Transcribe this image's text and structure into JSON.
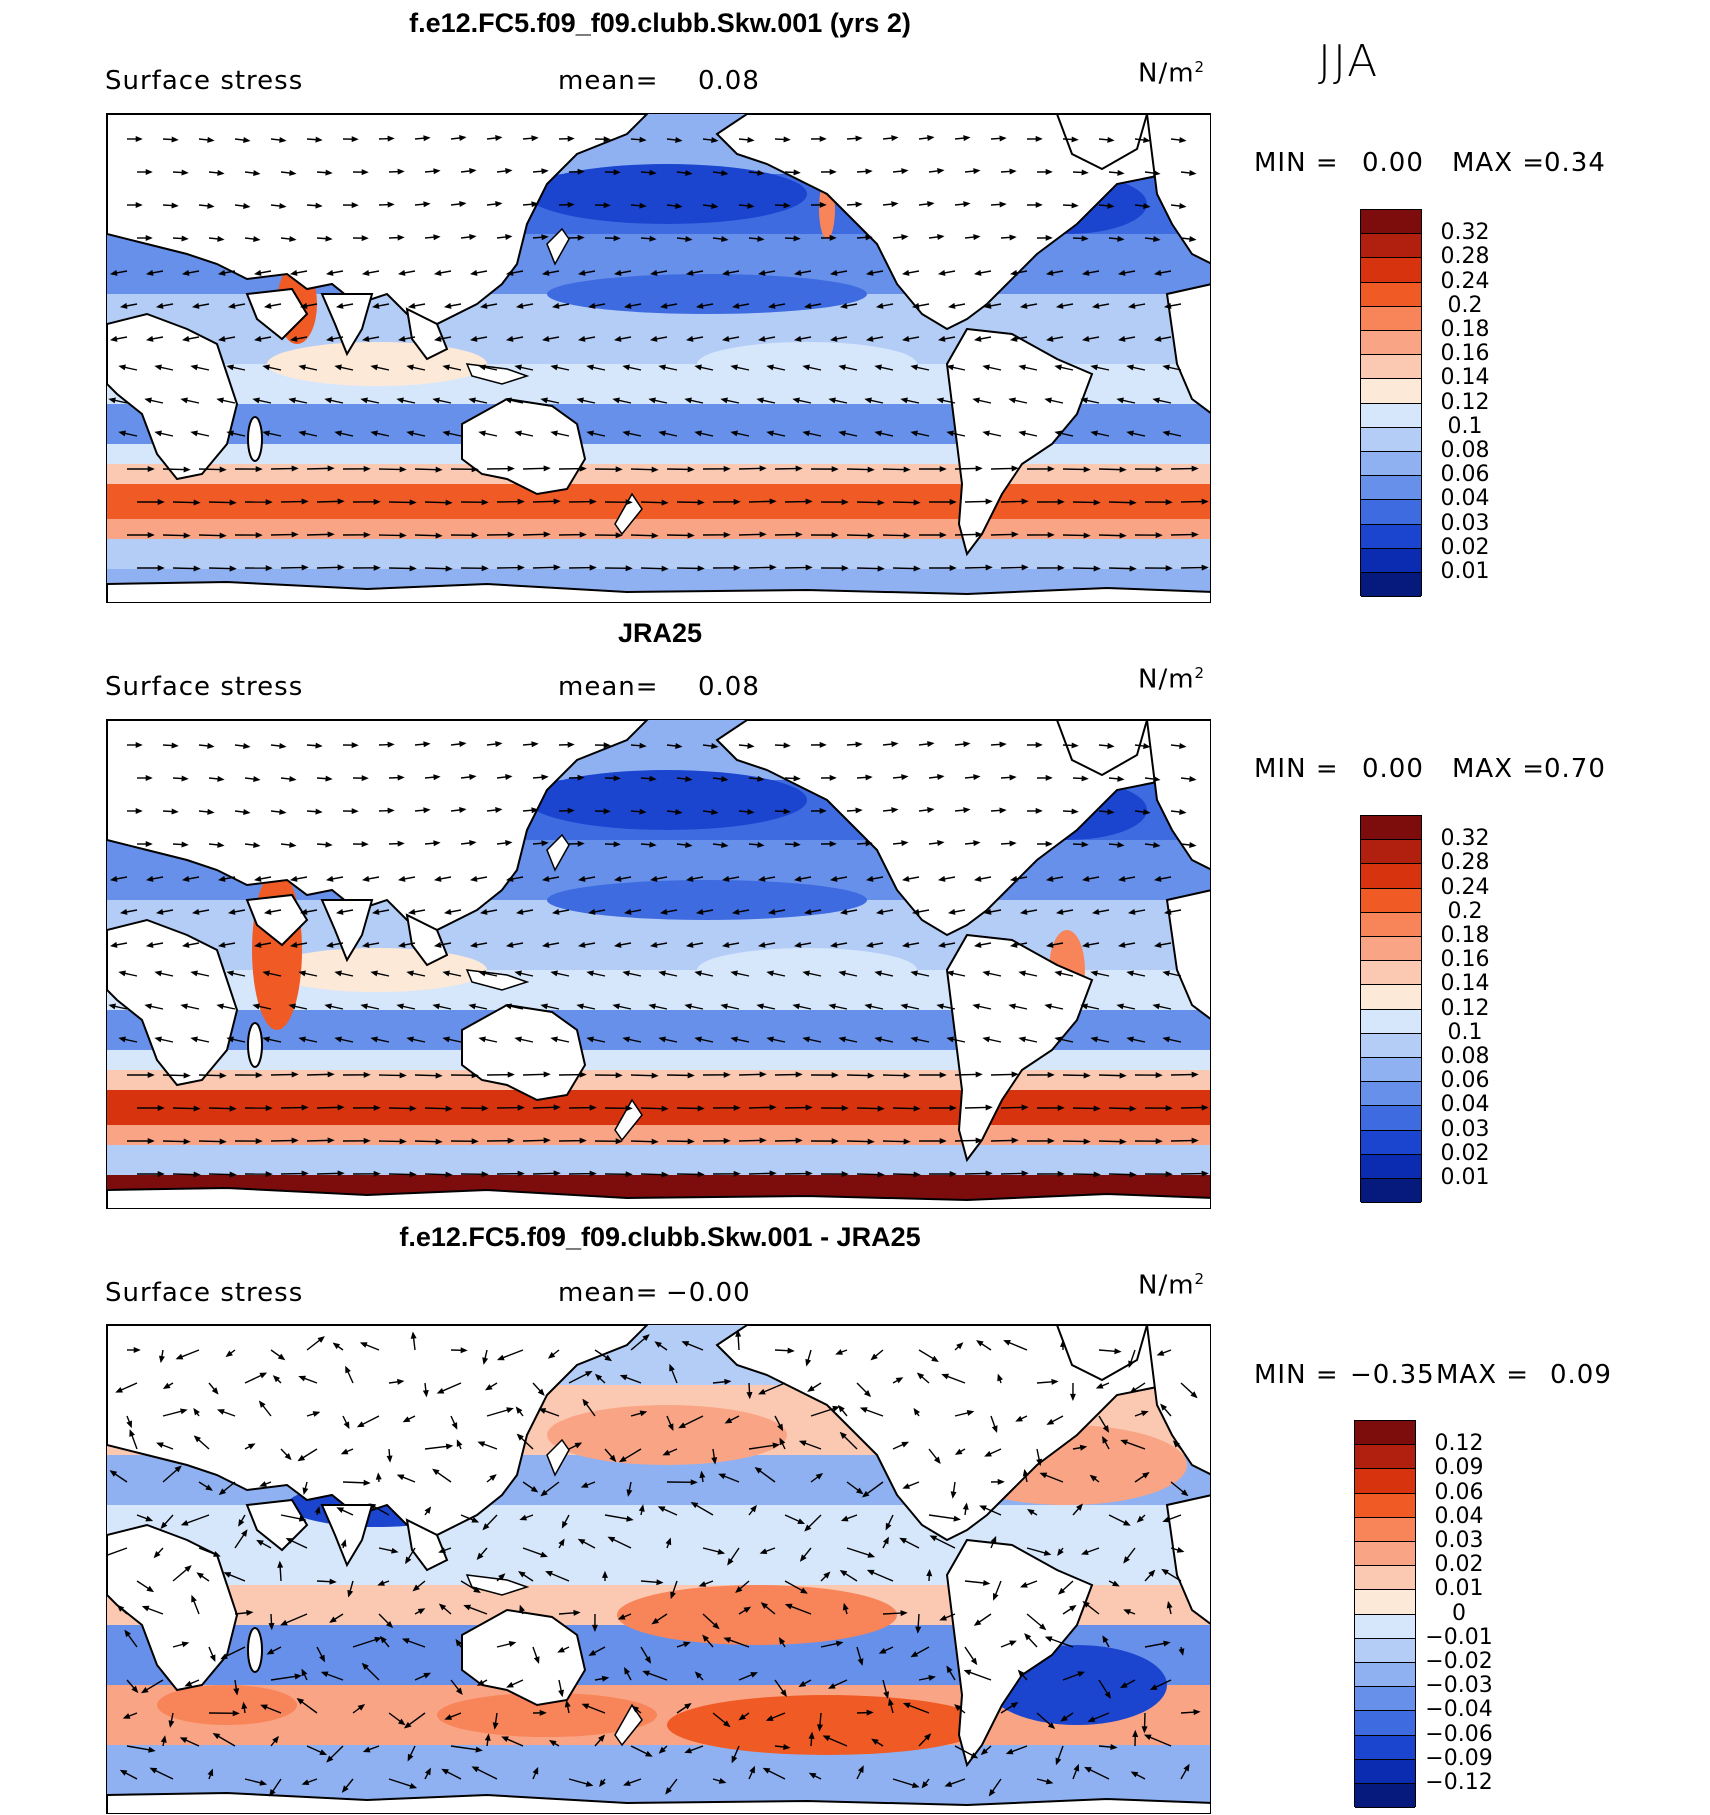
{
  "season": "JJA",
  "panels": [
    {
      "title": "f.e12.FC5.f09_f09.clubb.Skw.001 (yrs 2)",
      "variable": "Surface stress",
      "mean_label": "mean=",
      "mean_value": "0.08",
      "units": "N/m",
      "units_sup": "2",
      "min_label": "MIN =",
      "min_value": "0.00",
      "max_label": "MAX =",
      "max_value": "0.34",
      "colorbar_levels": [
        "0.32",
        "0.28",
        "0.24",
        "0.2",
        "0.18",
        "0.16",
        "0.14",
        "0.12",
        "0.1",
        "0.08",
        "0.06",
        "0.04",
        "0.03",
        "0.02",
        "0.01"
      ],
      "colorbar_colors": [
        "#7d0c0c",
        "#b1200e",
        "#d7330f",
        "#f05a24",
        "#f8845a",
        "#f9a585",
        "#fbc9b1",
        "#fde9d8",
        "#d6e7fb",
        "#b4cdf7",
        "#8fb1f1",
        "#6790ea",
        "#3e6be0",
        "#1b45cf",
        "#0b2bb0",
        "#061a7e"
      ]
    },
    {
      "title": "JRA25",
      "variable": "Surface stress",
      "mean_label": "mean=",
      "mean_value": "0.08",
      "units": "N/m",
      "units_sup": "2",
      "min_label": "MIN =",
      "min_value": "0.00",
      "max_label": "MAX =",
      "max_value": "0.70",
      "colorbar_levels": [
        "0.32",
        "0.28",
        "0.24",
        "0.2",
        "0.18",
        "0.16",
        "0.14",
        "0.12",
        "0.1",
        "0.08",
        "0.06",
        "0.04",
        "0.03",
        "0.02",
        "0.01"
      ],
      "colorbar_colors": [
        "#7d0c0c",
        "#b1200e",
        "#d7330f",
        "#f05a24",
        "#f8845a",
        "#f9a585",
        "#fbc9b1",
        "#fde9d8",
        "#d6e7fb",
        "#b4cdf7",
        "#8fb1f1",
        "#6790ea",
        "#3e6be0",
        "#1b45cf",
        "#0b2bb0",
        "#061a7e"
      ]
    },
    {
      "title": "f.e12.FC5.f09_f09.clubb.Skw.001 - JRA25",
      "variable": "Surface stress",
      "mean_label": "mean=",
      "mean_value": "−0.00",
      "units": "N/m",
      "units_sup": "2",
      "min_label": "MIN =",
      "min_value": "−0.35",
      "max_label": "MAX =",
      "max_value": "0.09",
      "colorbar_levels": [
        "0.12",
        "0.09",
        "0.06",
        "0.04",
        "0.03",
        "0.02",
        "0.01",
        "0",
        "−0.01",
        "−0.02",
        "−0.03",
        "−0.04",
        "−0.06",
        "−0.09",
        "−0.12"
      ],
      "colorbar_colors": [
        "#7d0c0c",
        "#b1200e",
        "#d7330f",
        "#f05a24",
        "#f8845a",
        "#f9a585",
        "#fbc9b1",
        "#fde9d8",
        "#d6e7fb",
        "#b4cdf7",
        "#8fb1f1",
        "#6790ea",
        "#3e6be0",
        "#1b45cf",
        "#0b2bb0",
        "#061a7e"
      ]
    }
  ],
  "chart_data": [
    {
      "type": "heatmap",
      "title": "f.e12.FC5.f09_f09.clubb.Skw.001 (yrs 2)",
      "subtitle": "Surface stress",
      "units": "N/m2",
      "mean": 0.08,
      "min": 0.0,
      "max": 0.34,
      "contour_levels": [
        0.01,
        0.02,
        0.03,
        0.04,
        0.06,
        0.08,
        0.1,
        0.12,
        0.14,
        0.16,
        0.18,
        0.2,
        0.24,
        0.28,
        0.32
      ],
      "xlim": [
        30,
        390
      ],
      "ylim": [
        -80,
        80
      ],
      "overlay": "wind stress vectors"
    },
    {
      "type": "heatmap",
      "title": "JRA25",
      "subtitle": "Surface stress",
      "units": "N/m2",
      "mean": 0.08,
      "min": 0.0,
      "max": 0.7,
      "contour_levels": [
        0.01,
        0.02,
        0.03,
        0.04,
        0.06,
        0.08,
        0.1,
        0.12,
        0.14,
        0.16,
        0.18,
        0.2,
        0.24,
        0.28,
        0.32
      ],
      "xlim": [
        30,
        390
      ],
      "ylim": [
        -80,
        80
      ],
      "overlay": "wind stress vectors"
    },
    {
      "type": "heatmap",
      "title": "f.e12.FC5.f09_f09.clubb.Skw.001 - JRA25",
      "subtitle": "Surface stress",
      "units": "N/m2",
      "mean": -0.0,
      "min": -0.35,
      "max": 0.09,
      "contour_levels": [
        -0.12,
        -0.09,
        -0.06,
        -0.04,
        -0.03,
        -0.02,
        -0.01,
        0,
        0.01,
        0.02,
        0.03,
        0.04,
        0.06,
        0.09,
        0.12
      ],
      "xlim": [
        30,
        390
      ],
      "ylim": [
        -80,
        80
      ],
      "overlay": "wind stress difference vectors"
    }
  ]
}
